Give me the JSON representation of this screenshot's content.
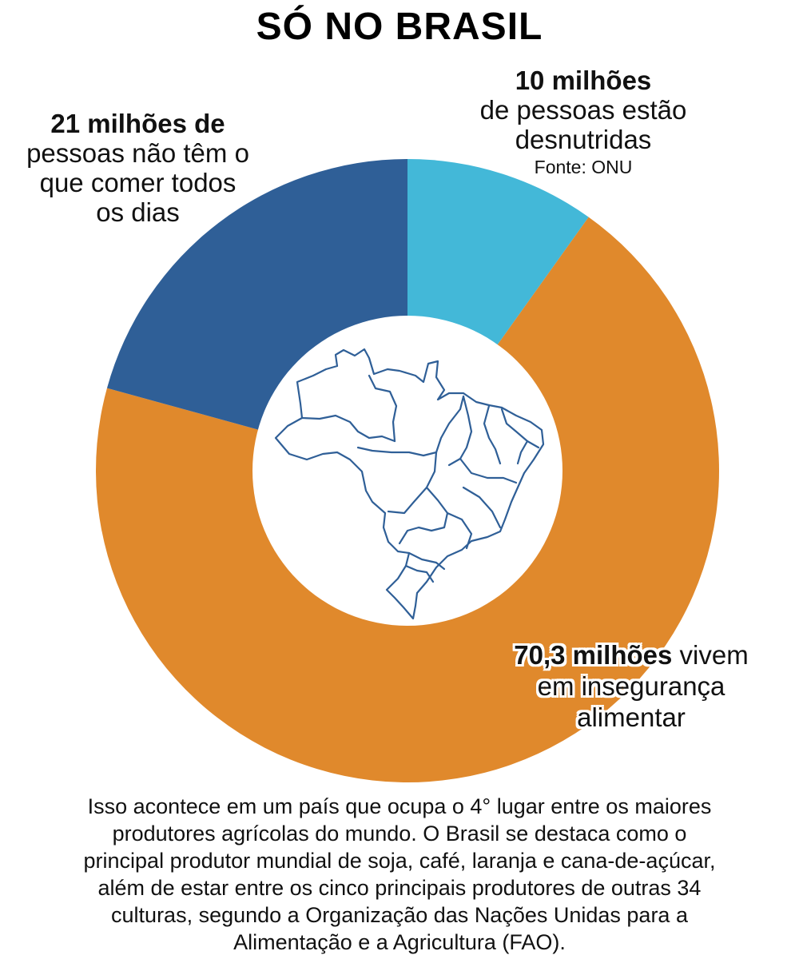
{
  "title": "SÓ NO BRASIL",
  "colors": {
    "slice_10": "#43B8D8",
    "slice_21": "#2F5F97",
    "slice_70": "#E0892C",
    "map_stroke": "#2F5F97",
    "background": "#FFFFFF"
  },
  "chart_data": {
    "type": "pie",
    "title": "SÓ NO BRASIL",
    "unit": "milhões",
    "categories": [
      "de pessoas estão desnutridas",
      "vivem em insegurança alimentar",
      "de pessoas não têm o que comer todos os dias"
    ],
    "values": [
      10,
      70.3,
      21
    ],
    "donut": true,
    "center_icon": "brazil-map-icon",
    "legend": "none"
  },
  "labels": {
    "slice_10": {
      "value_text": "10 milhões",
      "line1": "de pessoas estão",
      "line2": "desnutridas",
      "source": "Fonte: ONU"
    },
    "slice_21": {
      "value_text": "21 milhões de",
      "line1": "pessoas não têm o",
      "line2": "que comer todos",
      "line3": "os dias"
    },
    "slice_70": {
      "value_text": "70,3 milhões",
      "line1_rest": " vivem",
      "line2": "em insegurança",
      "line3": "alimentar"
    }
  },
  "footer": {
    "lines": [
      "Isso acontece em um país que ocupa o 4° lugar entre os maiores",
      "produtores agrícolas do mundo. O Brasil se destaca como o",
      "principal produtor mundial de soja, café, laranja e cana-de-açúcar,",
      "além de estar entre os cinco principais produtores de outras 34",
      "culturas, segundo a Organização das Nações Unidas para a",
      "Alimentação e a Agricultura (FAO)."
    ]
  }
}
